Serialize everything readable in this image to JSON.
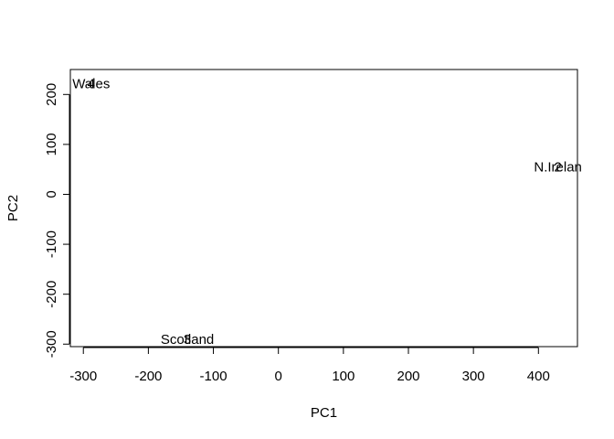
{
  "chart_data": {
    "type": "scatter",
    "title": "",
    "xlabel": "PC1",
    "ylabel": "PC2",
    "xlim": [
      -320,
      460
    ],
    "ylim": [
      -305,
      250
    ],
    "xticks": [
      -300,
      -200,
      -100,
      0,
      100,
      200,
      300,
      400
    ],
    "yticks": [
      -300,
      -200,
      -100,
      0,
      100,
      200
    ],
    "grid": false,
    "points": [
      {
        "x": -288,
        "y": 222,
        "label": "Wales",
        "marker": "4"
      },
      {
        "x": -140,
        "y": -290,
        "label": "Scotland",
        "marker": "3"
      },
      {
        "x": 430,
        "y": 55,
        "label": "N.Irelan",
        "marker": "2"
      }
    ]
  }
}
